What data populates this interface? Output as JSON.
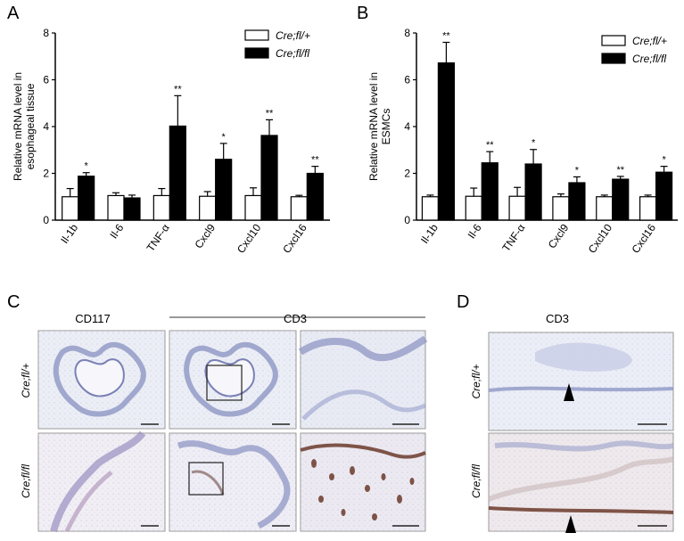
{
  "panels": {
    "a": {
      "letter": "A"
    },
    "b": {
      "letter": "B"
    },
    "c": {
      "letter": "C",
      "col1": "CD117",
      "col2": "CD3",
      "row1": "Cre;fl/+",
      "row2": "Cre;fl/fl"
    },
    "d": {
      "letter": "D",
      "title": "CD3",
      "row1": "Cre;fl/+",
      "row2": "Cre;fl/fl"
    }
  },
  "colors": {
    "control": "#ffffff",
    "knockout": "#000000",
    "tissue_bg": "#eef0f7",
    "tissue_stain": "#8f96c4",
    "tissue_dark": "#6b4a3f"
  },
  "chart_data": [
    {
      "type": "bar",
      "ylabel": "Relative mRNA level in esophageal tissue",
      "ylim": [
        0,
        8
      ],
      "yticks": [
        "0",
        "2",
        "4",
        "6",
        "8"
      ],
      "categories": [
        "Il-1b",
        "Il-6",
        "TNF-α",
        "Cxcl9",
        "Cxcl10",
        "Cxcl16"
      ],
      "series": [
        {
          "name": "Cre;fl/+",
          "values": [
            1.0,
            1.05,
            1.05,
            1.02,
            1.05,
            1.0
          ],
          "errors": [
            0.35,
            0.12,
            0.3,
            0.2,
            0.33,
            0.06
          ]
        },
        {
          "name": "Cre;fl/fl",
          "values": [
            1.88,
            0.95,
            4.02,
            2.6,
            3.62,
            2.0
          ],
          "errors": [
            0.15,
            0.12,
            1.3,
            0.68,
            0.67,
            0.3
          ]
        }
      ],
      "significance": [
        "*",
        "",
        "**",
        "*",
        "**",
        "**"
      ],
      "legend": "top-right"
    },
    {
      "type": "bar",
      "ylabel": "Relative mRNA level in ESMCs",
      "ylim": [
        0,
        8
      ],
      "yticks": [
        "0",
        "2",
        "4",
        "6",
        "8"
      ],
      "categories": [
        "Il-1b",
        "Il-6",
        "TNF-α",
        "Cxcl9",
        "Cxcl10",
        "Cxcl16"
      ],
      "series": [
        {
          "name": "Cre;fl/+",
          "values": [
            1.0,
            1.02,
            1.02,
            1.0,
            1.0,
            1.0
          ],
          "errors": [
            0.07,
            0.35,
            0.38,
            0.12,
            0.07,
            0.07
          ]
        },
        {
          "name": "Cre;fl/fl",
          "values": [
            6.72,
            2.45,
            2.4,
            1.6,
            1.75,
            2.05
          ],
          "errors": [
            0.88,
            0.48,
            0.62,
            0.25,
            0.12,
            0.25
          ]
        }
      ],
      "significance": [
        "**",
        "**",
        "*",
        "*",
        "**",
        "*"
      ],
      "legend": "top-right"
    }
  ]
}
